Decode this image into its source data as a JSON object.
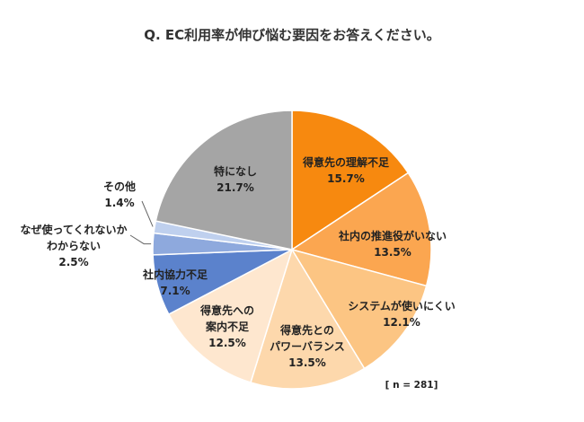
{
  "chart_data": {
    "type": "pie",
    "title": "Q. EC利用率が伸び悩む要因をお答えください。",
    "note": "[ n = 281]",
    "slices": [
      {
        "name": "得意先の理解不足",
        "value": 15.7,
        "label": "15.7%",
        "color": "#f7890f"
      },
      {
        "name": "社内の推進役がいない",
        "value": 13.5,
        "label": "13.5%",
        "color": "#fba650"
      },
      {
        "name": "システムが使いにくい",
        "value": 12.1,
        "label": "12.1%",
        "color": "#fcc583"
      },
      {
        "name": "得意先との パワーバランス",
        "value": 13.5,
        "label": "13.5%",
        "color": "#fdd8ac"
      },
      {
        "name": "得意先への 案内不足",
        "value": 12.5,
        "label": "12.5%",
        "color": "#fee7cf"
      },
      {
        "name": "社内協力不足",
        "value": 7.1,
        "label": "7.1%",
        "color": "#5b82cc"
      },
      {
        "name": "なぜ使ってくれないか わからない",
        "value": 2.5,
        "label": "2.5%",
        "color": "#8ea9dd"
      },
      {
        "name": "その他",
        "value": 1.4,
        "label": "1.4%",
        "color": "#bfd0ee"
      },
      {
        "name": "特になし",
        "value": 21.7,
        "label": "21.7%",
        "color": "#a5a5a5"
      }
    ]
  }
}
